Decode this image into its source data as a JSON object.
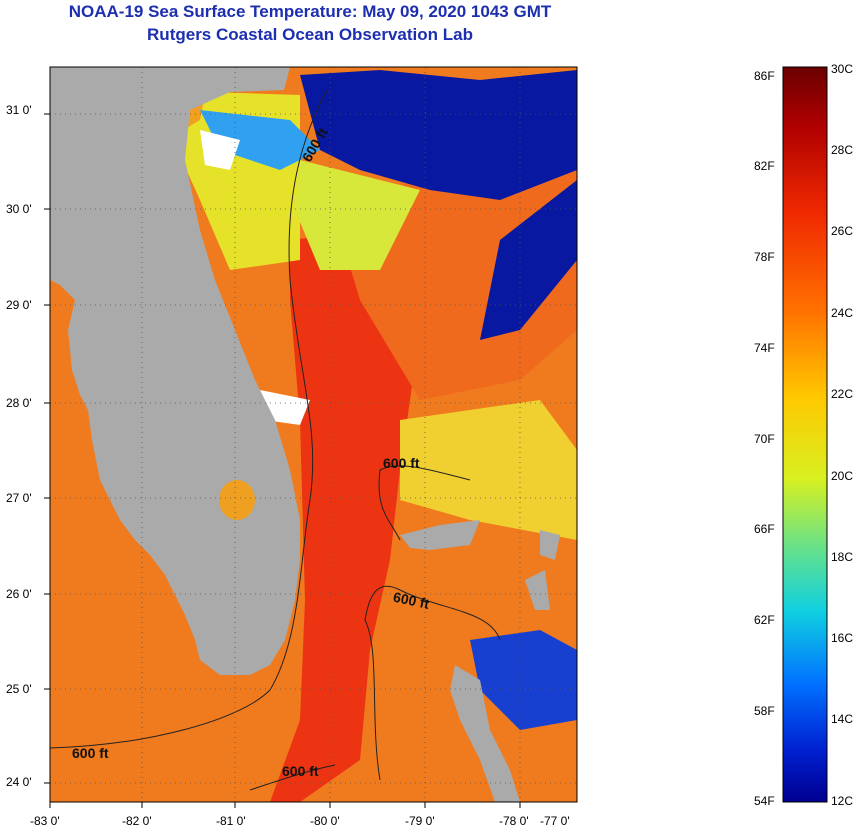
{
  "title_line1": "NOAA-19 Sea Surface Temperature:  May 09, 2020 1043 GMT",
  "title_line2": "Rutgers Coastal Ocean Observation Lab",
  "map": {
    "lat_labels": [
      "31 0'",
      "30 0'",
      "29 0'",
      "28 0'",
      "27 0'",
      "26 0'",
      "25 0'",
      "24 0'"
    ],
    "lon_labels": [
      "-83 0'",
      "-82 0'",
      "-81 0'",
      "-80 0'",
      "-79 0'",
      "-78 0'",
      "-77 0'"
    ],
    "contour_labels": [
      "600 ft",
      "600 ft",
      "600 ft",
      "600 ft",
      "600 ft"
    ],
    "colors": {
      "land": "#aaaaaa",
      "cloud": "#0010a0",
      "warm": "#f03a10",
      "ocean": "#f08020"
    }
  },
  "colorbar": {
    "fahrenheit_labels": [
      "86F",
      "82F",
      "78F",
      "74F",
      "70F",
      "66F",
      "62F",
      "58F",
      "54F"
    ],
    "celsius_labels": [
      "30C",
      "28C",
      "26C",
      "24C",
      "22C",
      "20C",
      "18C",
      "16C",
      "14C",
      "12C"
    ]
  }
}
